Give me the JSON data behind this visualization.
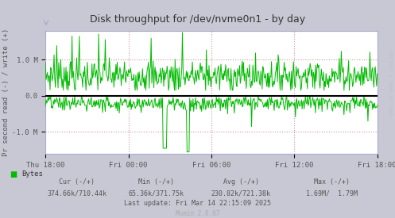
{
  "title": "Disk throughput for /dev/nvme0n1 - by day",
  "ylabel": "Pr second read (-) / write (+)",
  "yticks": [
    -1000000,
    0,
    1000000
  ],
  "ytick_labels": [
    "-1.0 M",
    "0.0",
    "1.0 M"
  ],
  "ylim": [
    -1600000,
    1800000
  ],
  "xlim": [
    0,
    1
  ],
  "xtick_positions": [
    0.0,
    0.25,
    0.5,
    0.75,
    1.0
  ],
  "xtick_labels": [
    "Thu 18:00",
    "Fri 00:00",
    "Fri 06:00",
    "Fri 12:00",
    "Fri 18:00"
  ],
  "background_color": "#c8c8d4",
  "plot_bg_color": "#ffffff",
  "grid_color_h": "#cc9999",
  "grid_color_v": "#cc99bb",
  "line_color": "#00bb00",
  "zero_line_color": "#000000",
  "border_color": "#aaaacc",
  "title_color": "#333333",
  "label_color": "#555555",
  "legend_text": "Bytes",
  "cur_text": "Cur (-/+)",
  "min_text": "Min (-/+)",
  "avg_text": "Avg (-/+)",
  "max_text": "Max (-/+)",
  "cur_val": "374.66k/710.44k",
  "min_val": "65.36k/371.75k",
  "avg_val": "230.82k/721.38k",
  "max_val": "1.69M/  1.79M",
  "last_update": "Last update: Fri Mar 14 22:15:09 2025",
  "munin_version": "Munin 2.0.67",
  "rrdtool_label": "RRDTOOL / TOBI OETIKER",
  "n_points": 500,
  "write_base": 550000,
  "write_std": 220000,
  "read_base": -200000,
  "read_std": 120000
}
